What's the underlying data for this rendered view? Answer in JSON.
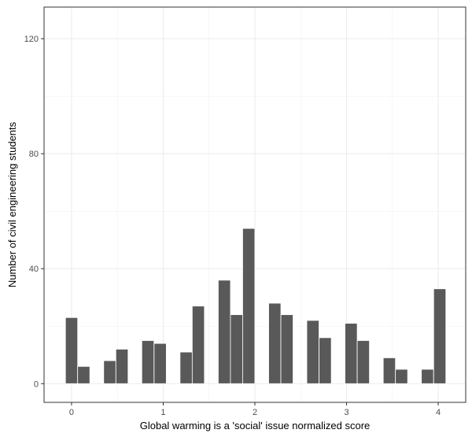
{
  "chart_data": {
    "type": "bar",
    "title": "",
    "xlabel": "Global warming is a 'social' issue normalized score",
    "ylabel": "Number of civil engineering students",
    "xlim": [
      -0.3,
      4.3
    ],
    "ylim": [
      -6.5,
      131
    ],
    "x_ticks": [
      0,
      1,
      2,
      3,
      4
    ],
    "y_ticks": [
      0,
      40,
      80,
      120
    ],
    "bar_width": 0.133,
    "grid": true,
    "bar_color": "#595959",
    "bars": [
      {
        "x": 0.0,
        "value": 23
      },
      {
        "x": 0.133,
        "value": 6
      },
      {
        "x": 0.417,
        "value": 8
      },
      {
        "x": 0.55,
        "value": 12
      },
      {
        "x": 0.833,
        "value": 15
      },
      {
        "x": 0.967,
        "value": 14
      },
      {
        "x": 1.25,
        "value": 11
      },
      {
        "x": 1.383,
        "value": 27
      },
      {
        "x": 1.667,
        "value": 36
      },
      {
        "x": 1.8,
        "value": 24
      },
      {
        "x": 1.933,
        "value": 54
      },
      {
        "x": 2.217,
        "value": 28
      },
      {
        "x": 2.35,
        "value": 24
      },
      {
        "x": 2.633,
        "value": 22
      },
      {
        "x": 2.767,
        "value": 16
      },
      {
        "x": 3.05,
        "value": 21
      },
      {
        "x": 3.183,
        "value": 15
      },
      {
        "x": 3.467,
        "value": 9
      },
      {
        "x": 3.6,
        "value": 5
      },
      {
        "x": 3.883,
        "value": 5
      },
      {
        "x": 4.017,
        "value": 33
      }
    ]
  }
}
